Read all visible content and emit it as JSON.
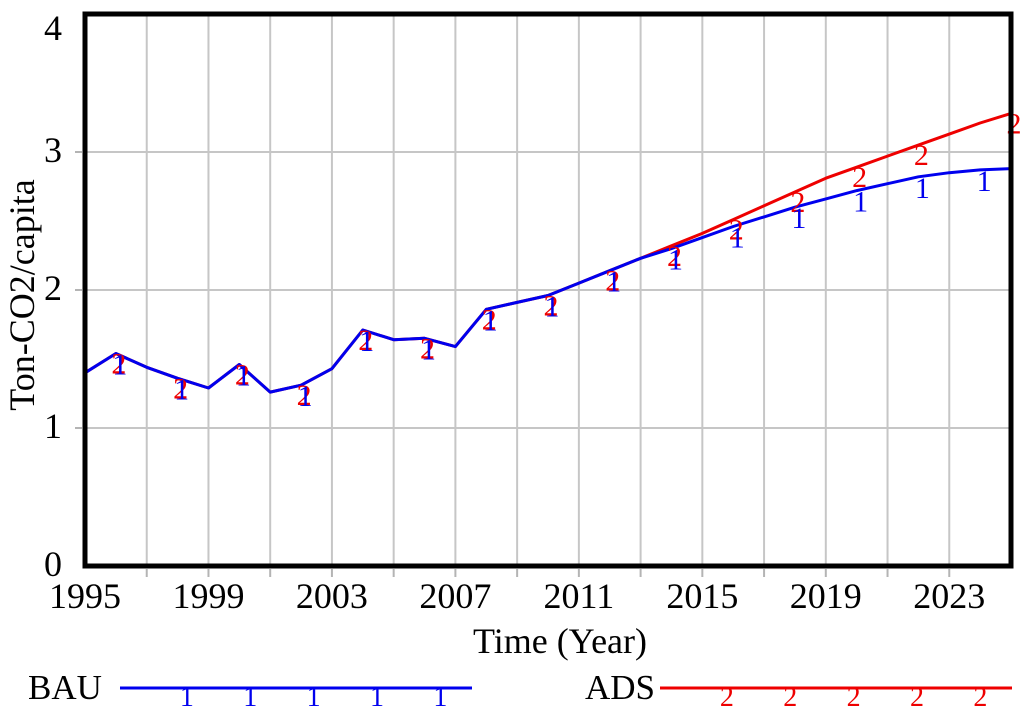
{
  "chart_data": {
    "type": "line",
    "title": "",
    "xlabel": "Time (Year)",
    "ylabel": "Ton-CO2/capita",
    "xlim": [
      1995,
      2025
    ],
    "ylim": [
      0,
      4
    ],
    "x_tick_labels": [
      1995,
      1999,
      2003,
      2007,
      2011,
      2015,
      2019,
      2023
    ],
    "y_tick_labels": [
      0,
      1,
      2,
      3,
      4
    ],
    "x_gridline_step_years": 2,
    "grid": true,
    "legend_position": "bottom",
    "frame_color": "#000000",
    "gridline_color": "#c6c6c6",
    "tick_color": "#b4b4b4",
    "x": [
      1995,
      1996,
      1997,
      1998,
      1999,
      2000,
      2001,
      2002,
      2003,
      2004,
      2005,
      2006,
      2007,
      2008,
      2009,
      2010,
      2011,
      2012,
      2013,
      2014,
      2015,
      2016,
      2017,
      2018,
      2019,
      2020,
      2021,
      2022,
      2023,
      2024,
      2025
    ],
    "series": [
      {
        "name": "BAU",
        "marker": "1",
        "color": "#0000ee",
        "marker_years": [
          1996,
          1998,
          2000,
          2002,
          2004,
          2006,
          2008,
          2010,
          2012,
          2014,
          2016,
          2018,
          2020,
          2022,
          2024
        ],
        "values": [
          1.4,
          1.54,
          1.44,
          1.36,
          1.29,
          1.46,
          1.26,
          1.31,
          1.43,
          1.71,
          1.64,
          1.65,
          1.59,
          1.86,
          1.91,
          1.96,
          2.05,
          2.14,
          2.23,
          2.3,
          2.38,
          2.46,
          2.53,
          2.6,
          2.66,
          2.72,
          2.77,
          2.82,
          2.85,
          2.87,
          2.88
        ]
      },
      {
        "name": "ADS",
        "marker": "2",
        "color": "#ee0000",
        "marker_years": [
          1996,
          1998,
          2000,
          2002,
          2004,
          2006,
          2008,
          2010,
          2012,
          2014,
          2016,
          2018,
          2020,
          2022,
          2025
        ],
        "values": [
          1.4,
          1.54,
          1.44,
          1.36,
          1.29,
          1.46,
          1.26,
          1.31,
          1.43,
          1.71,
          1.64,
          1.65,
          1.59,
          1.86,
          1.91,
          1.96,
          2.05,
          2.14,
          2.23,
          2.32,
          2.41,
          2.51,
          2.61,
          2.71,
          2.81,
          2.89,
          2.97,
          3.05,
          3.13,
          3.21,
          3.28
        ]
      }
    ]
  }
}
